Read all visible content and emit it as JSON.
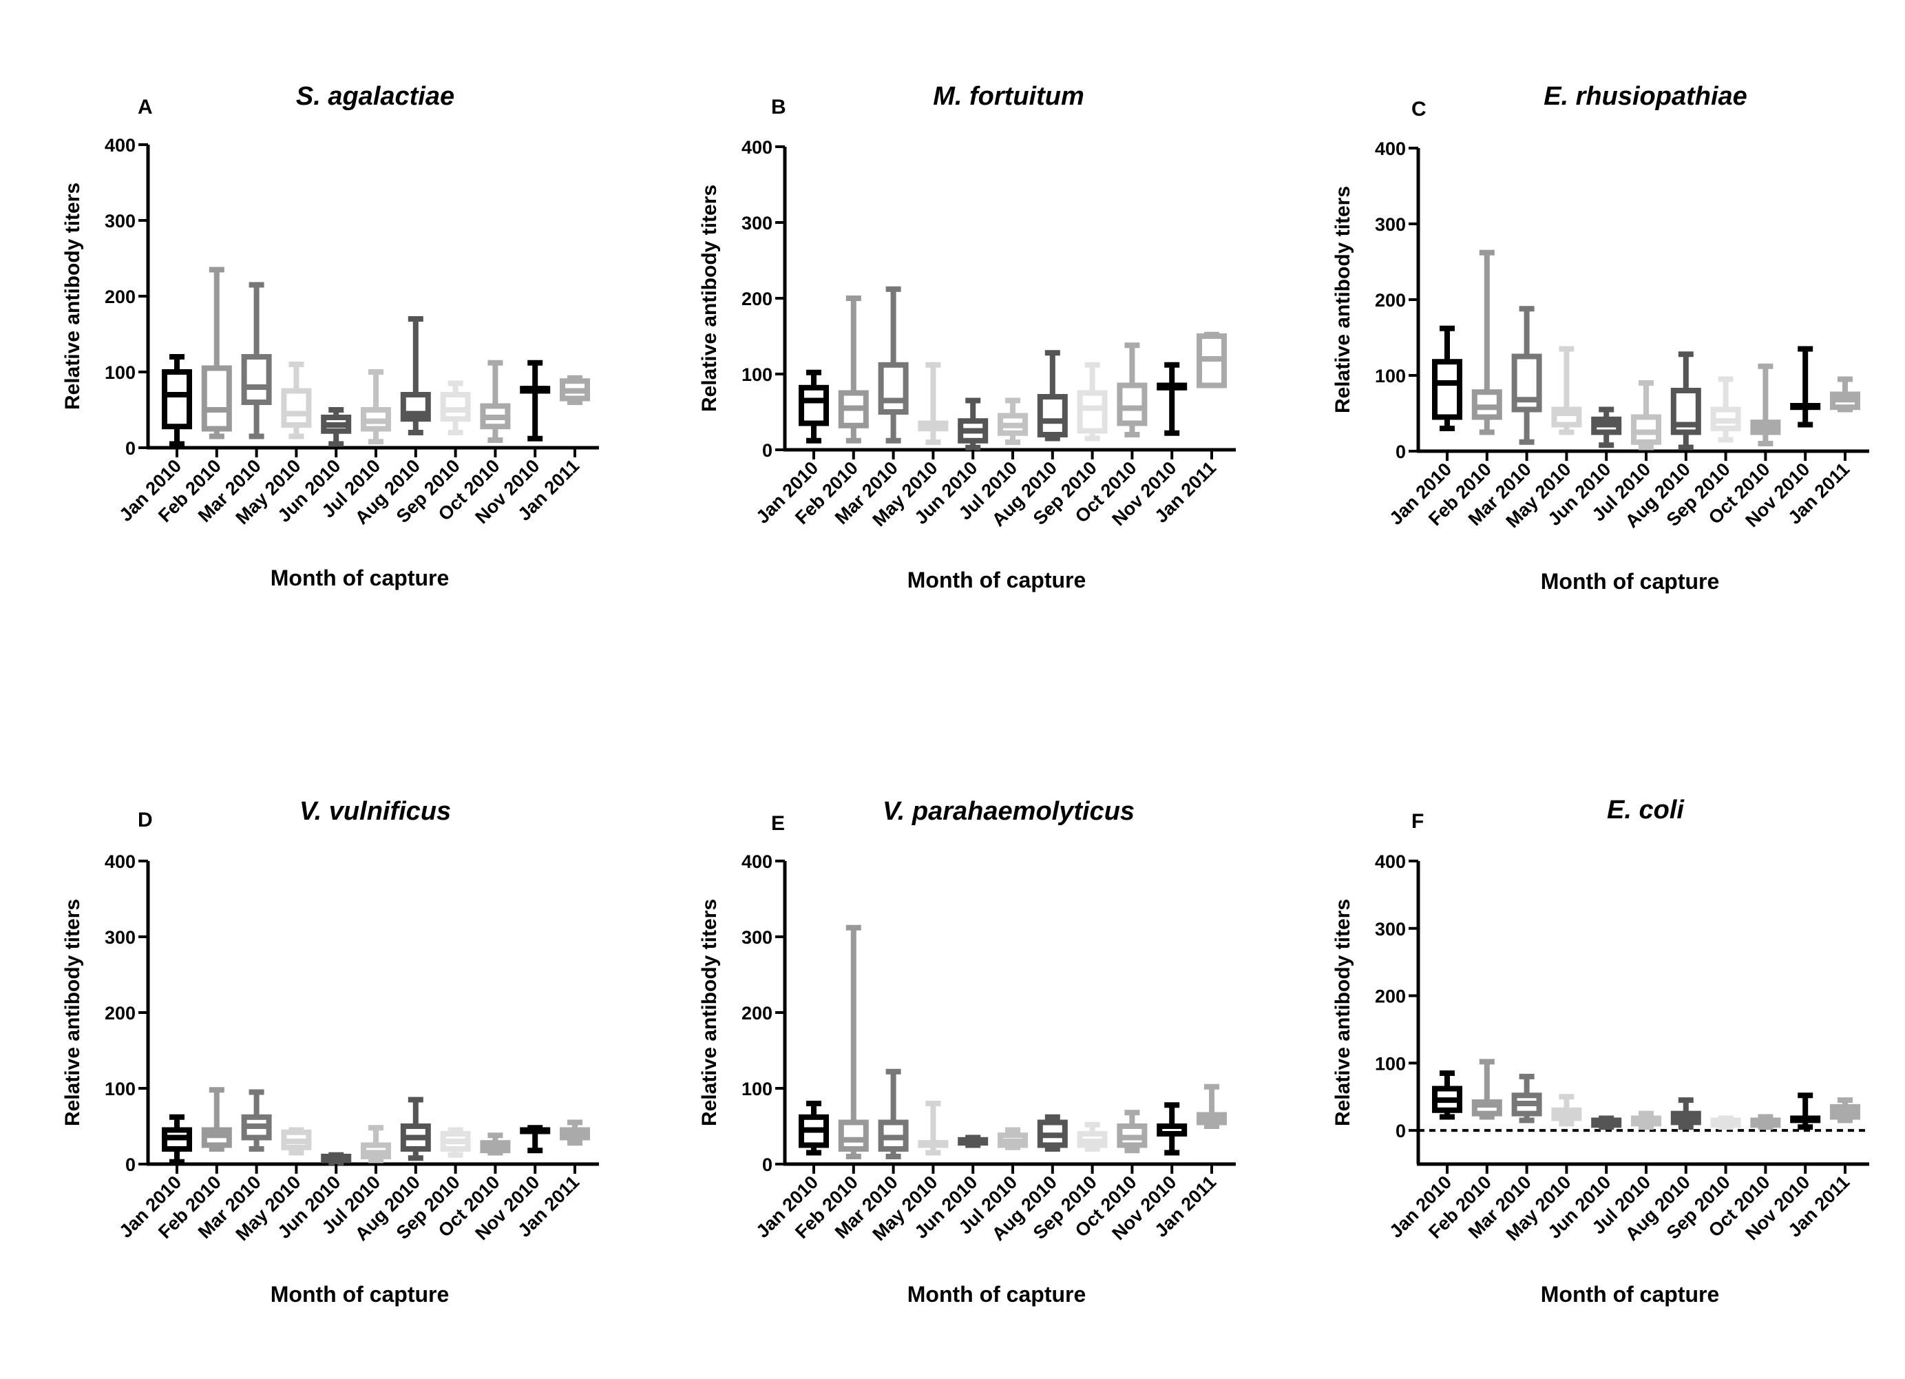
{
  "chart_data": [
    {
      "type": "boxplot",
      "panel": "A",
      "title": "S. agalactiae",
      "xlabel": "Month of capture",
      "ylabel": "Relative antibody titers",
      "ylim": [
        0,
        400
      ],
      "yticks": [
        0,
        100,
        200,
        300,
        400
      ],
      "categories": [
        "Jan 2010",
        "Feb 2010",
        "Mar 2010",
        "May 2010",
        "Jun 2010",
        "Jul 2010",
        "Aug 2010",
        "Sep 2010",
        "Oct 2010",
        "Nov 2010",
        "Jan 2011"
      ],
      "boxes": [
        {
          "min": 5,
          "q1": 28,
          "median": 70,
          "q3": 100,
          "max": 120
        },
        {
          "min": 15,
          "q1": 25,
          "median": 50,
          "q3": 105,
          "max": 235
        },
        {
          "min": 15,
          "q1": 60,
          "median": 80,
          "q3": 120,
          "max": 215
        },
        {
          "min": 15,
          "q1": 30,
          "median": 45,
          "q3": 75,
          "max": 110
        },
        {
          "min": 5,
          "q1": 22,
          "median": 30,
          "q3": 40,
          "max": 50
        },
        {
          "min": 8,
          "q1": 25,
          "median": 35,
          "q3": 50,
          "max": 100
        },
        {
          "min": 20,
          "q1": 38,
          "median": 45,
          "q3": 70,
          "max": 170
        },
        {
          "min": 20,
          "q1": 38,
          "median": 50,
          "q3": 70,
          "max": 85
        },
        {
          "min": 10,
          "q1": 28,
          "median": 40,
          "q3": 55,
          "max": 112
        },
        {
          "min": 12,
          "q1": 75,
          "median": 78,
          "q3": 78,
          "max": 112
        },
        {
          "min": 60,
          "q1": 65,
          "median": 75,
          "q3": 88,
          "max": 92
        }
      ]
    },
    {
      "type": "boxplot",
      "panel": "B",
      "title": "M. fortuitum",
      "xlabel": "Month of capture",
      "ylabel": "Relative antibody titers",
      "ylim": [
        0,
        400
      ],
      "yticks": [
        0,
        100,
        200,
        300,
        400
      ],
      "categories": [
        "Jan 2010",
        "Feb 2010",
        "Mar 2010",
        "May 2010",
        "Jun 2010",
        "Jul 2010",
        "Aug 2010",
        "Sep 2010",
        "Oct 2010",
        "Nov 2010",
        "Jan 2011"
      ],
      "boxes": [
        {
          "min": 12,
          "q1": 35,
          "median": 65,
          "q3": 82,
          "max": 102
        },
        {
          "min": 12,
          "q1": 32,
          "median": 55,
          "q3": 75,
          "max": 200
        },
        {
          "min": 12,
          "q1": 50,
          "median": 65,
          "q3": 112,
          "max": 212
        },
        {
          "min": 10,
          "q1": 28,
          "median": 35,
          "q3": 35,
          "max": 112
        },
        {
          "min": 3,
          "q1": 12,
          "median": 25,
          "q3": 38,
          "max": 65
        },
        {
          "min": 10,
          "q1": 22,
          "median": 32,
          "q3": 45,
          "max": 65
        },
        {
          "min": 15,
          "q1": 20,
          "median": 38,
          "q3": 70,
          "max": 128
        },
        {
          "min": 15,
          "q1": 25,
          "median": 55,
          "q3": 75,
          "max": 112
        },
        {
          "min": 20,
          "q1": 35,
          "median": 55,
          "q3": 85,
          "max": 138
        },
        {
          "min": 22,
          "q1": 82,
          "median": 85,
          "q3": 85,
          "max": 112
        },
        {
          "min": 85,
          "q1": 85,
          "median": 120,
          "q3": 150,
          "max": 152
        }
      ]
    },
    {
      "type": "boxplot",
      "panel": "C",
      "title": "E. rhusiopathiae",
      "xlabel": "Month of capture",
      "ylabel": "Relative antibody titers",
      "ylim": [
        0,
        400
      ],
      "yticks": [
        0,
        100,
        200,
        300,
        400
      ],
      "categories": [
        "Jan 2010",
        "Feb 2010",
        "Mar 2010",
        "May 2010",
        "Jun 2010",
        "Jul 2010",
        "Aug 2010",
        "Sep 2010",
        "Oct 2010",
        "Nov 2010",
        "Jan 2011"
      ],
      "boxes": [
        {
          "min": 30,
          "q1": 45,
          "median": 90,
          "q3": 118,
          "max": 162
        },
        {
          "min": 25,
          "q1": 45,
          "median": 58,
          "q3": 78,
          "max": 262
        },
        {
          "min": 12,
          "q1": 55,
          "median": 68,
          "q3": 125,
          "max": 188
        },
        {
          "min": 25,
          "q1": 35,
          "median": 50,
          "q3": 55,
          "max": 135
        },
        {
          "min": 8,
          "q1": 25,
          "median": 35,
          "q3": 42,
          "max": 55
        },
        {
          "min": 5,
          "q1": 12,
          "median": 25,
          "q3": 45,
          "max": 90
        },
        {
          "min": 5,
          "q1": 25,
          "median": 35,
          "q3": 80,
          "max": 128
        },
        {
          "min": 15,
          "q1": 30,
          "median": 40,
          "q3": 55,
          "max": 95
        },
        {
          "min": 10,
          "q1": 25,
          "median": 32,
          "q3": 38,
          "max": 112
        },
        {
          "min": 35,
          "q1": 58,
          "median": 60,
          "q3": 60,
          "max": 135
        },
        {
          "min": 55,
          "q1": 58,
          "median": 68,
          "q3": 75,
          "max": 95
        }
      ]
    },
    {
      "type": "boxplot",
      "panel": "D",
      "title": "V. vulnificus",
      "xlabel": "Month of capture",
      "ylabel": "Relative antibody titers",
      "ylim": [
        0,
        400
      ],
      "yticks": [
        0,
        100,
        200,
        300,
        400
      ],
      "categories": [
        "Jan 2010",
        "Feb 2010",
        "Mar 2010",
        "May 2010",
        "Jun 2010",
        "Jul 2010",
        "Aug 2010",
        "Sep 2010",
        "Oct 2010",
        "Nov 2010",
        "Jan 2011"
      ],
      "boxes": [
        {
          "min": 3,
          "q1": 20,
          "median": 35,
          "q3": 45,
          "max": 62
        },
        {
          "min": 20,
          "q1": 25,
          "median": 38,
          "q3": 45,
          "max": 98
        },
        {
          "min": 20,
          "q1": 35,
          "median": 50,
          "q3": 62,
          "max": 95
        },
        {
          "min": 15,
          "q1": 22,
          "median": 30,
          "q3": 42,
          "max": 45
        },
        {
          "min": 2,
          "q1": 5,
          "median": 8,
          "q3": 10,
          "max": 12
        },
        {
          "min": 5,
          "q1": 10,
          "median": 15,
          "q3": 25,
          "max": 48
        },
        {
          "min": 8,
          "q1": 20,
          "median": 35,
          "q3": 50,
          "max": 85
        },
        {
          "min": 12,
          "q1": 20,
          "median": 30,
          "q3": 40,
          "max": 45
        },
        {
          "min": 15,
          "q1": 18,
          "median": 22,
          "q3": 28,
          "max": 38
        },
        {
          "min": 18,
          "q1": 45,
          "median": 45,
          "q3": 45,
          "max": 48
        },
        {
          "min": 28,
          "q1": 35,
          "median": 40,
          "q3": 45,
          "max": 55
        }
      ]
    },
    {
      "type": "boxplot",
      "panel": "E",
      "title": "V. parahaemolyticus",
      "xlabel": "Month of capture",
      "ylabel": "Relative antibody titers",
      "ylim": [
        0,
        400
      ],
      "yticks": [
        0,
        100,
        200,
        300,
        400
      ],
      "categories": [
        "Jan 2010",
        "Feb 2010",
        "Mar 2010",
        "May 2010",
        "Jun 2010",
        "Jul 2010",
        "Aug 2010",
        "Sep 2010",
        "Oct 2010",
        "Nov 2010",
        "Jan 2011"
      ],
      "boxes": [
        {
          "min": 15,
          "q1": 25,
          "median": 45,
          "q3": 62,
          "max": 80
        },
        {
          "min": 10,
          "q1": 20,
          "median": 32,
          "q3": 55,
          "max": 312
        },
        {
          "min": 10,
          "q1": 20,
          "median": 35,
          "q3": 55,
          "max": 122
        },
        {
          "min": 15,
          "q1": 25,
          "median": 28,
          "q3": 28,
          "max": 80
        },
        {
          "min": 25,
          "q1": 28,
          "median": 30,
          "q3": 32,
          "max": 35
        },
        {
          "min": 22,
          "q1": 25,
          "median": 30,
          "q3": 38,
          "max": 45
        },
        {
          "min": 20,
          "q1": 25,
          "median": 38,
          "q3": 55,
          "max": 62
        },
        {
          "min": 20,
          "q1": 25,
          "median": 30,
          "q3": 40,
          "max": 52
        },
        {
          "min": 18,
          "q1": 25,
          "median": 35,
          "q3": 50,
          "max": 68
        },
        {
          "min": 15,
          "q1": 40,
          "median": 50,
          "q3": 50,
          "max": 78
        },
        {
          "min": 50,
          "q1": 55,
          "median": 62,
          "q3": 65,
          "max": 102
        }
      ]
    },
    {
      "type": "boxplot",
      "panel": "F",
      "title": "E. coli",
      "xlabel": "Month of capture",
      "ylabel": "Relative antibody titers",
      "ylim": [
        -50,
        400
      ],
      "yticks": [
        0,
        100,
        200,
        300,
        400
      ],
      "reference_line": 0,
      "categories": [
        "Jan 2010",
        "Feb 2010",
        "Mar 2010",
        "May 2010",
        "Jun 2010",
        "Jul 2010",
        "Aug 2010",
        "Sep 2010",
        "Oct 2010",
        "Nov 2010",
        "Jan 2011"
      ],
      "boxes": [
        {
          "min": 20,
          "q1": 30,
          "median": 45,
          "q3": 62,
          "max": 85
        },
        {
          "min": 20,
          "q1": 25,
          "median": 38,
          "q3": 42,
          "max": 102
        },
        {
          "min": 15,
          "q1": 25,
          "median": 40,
          "q3": 52,
          "max": 80
        },
        {
          "min": 10,
          "q1": 18,
          "median": 25,
          "q3": 30,
          "max": 50
        },
        {
          "min": 5,
          "q1": 8,
          "median": 12,
          "q3": 15,
          "max": 18
        },
        {
          "min": 5,
          "q1": 10,
          "median": 15,
          "q3": 18,
          "max": 25
        },
        {
          "min": 5,
          "q1": 12,
          "median": 18,
          "q3": 25,
          "max": 45
        },
        {
          "min": 5,
          "q1": 8,
          "median": 12,
          "q3": 15,
          "max": 18
        },
        {
          "min": 5,
          "q1": 8,
          "median": 12,
          "q3": 15,
          "max": 20
        },
        {
          "min": 5,
          "q1": 15,
          "median": 18,
          "q3": 18,
          "max": 52
        },
        {
          "min": 15,
          "q1": 20,
          "median": 28,
          "q3": 35,
          "max": 45
        }
      ]
    }
  ],
  "series_colors": [
    "#000000",
    "#999999",
    "#777777",
    "#d4d4d4",
    "#555555",
    "#c2c2c2",
    "#555555",
    "#e2e2e2",
    "#aaaaaa",
    "#000000",
    "#aaaaaa"
  ]
}
